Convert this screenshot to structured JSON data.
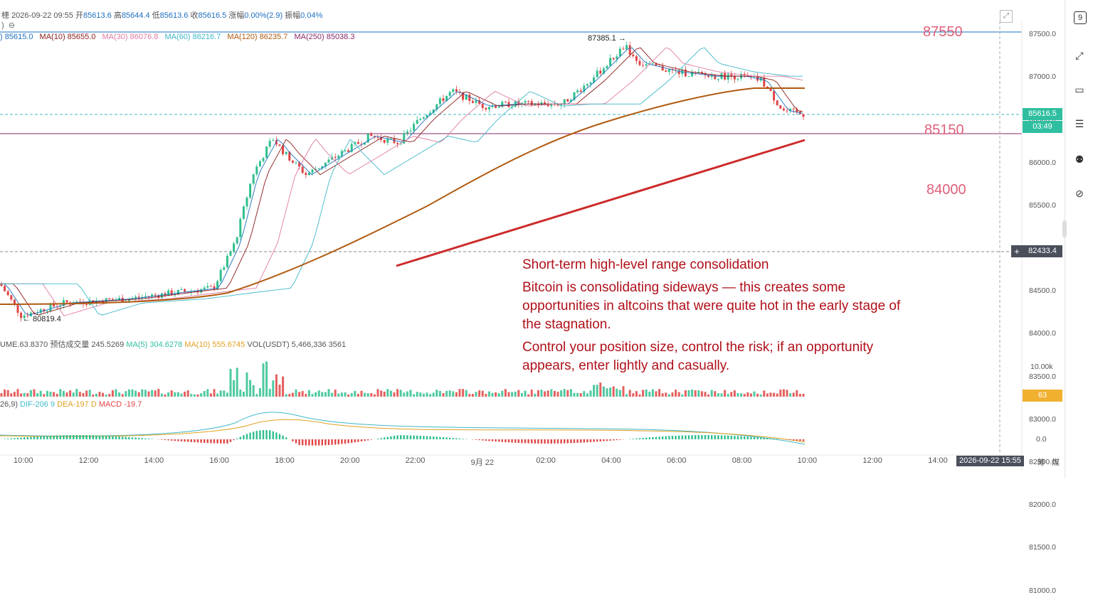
{
  "header": {
    "pair_prefix": "槵",
    "timestamp": "2026-09-22 09:55",
    "open_label": "开",
    "open": "85613.6",
    "high_label": "高",
    "high": "85644.4",
    "low_label": "低",
    "low": "85613.6",
    "close_label": "收",
    "close": "85616.5",
    "change_label": "涨幅",
    "change": "0.00%(2.9)",
    "amp_label": "振幅",
    "amp": "0.04%"
  },
  "ma_row": {
    "ma5": ") 85615.0",
    "ma10": "MA(10) 85655.0",
    "ma30": "MA(30) 86076.8",
    "ma60": "MA(60) 86216.7",
    "ma120": "MA(120) 86235.7",
    "ma250": "MA(250) 85038.3"
  },
  "colors": {
    "ma5": "#1e6fbf",
    "ma10": "#8b1a1a",
    "ma30": "#e07aa0",
    "ma60": "#3fb8c8",
    "ma120": "#b05a10",
    "ma250": "#8a2a6a",
    "up": "#2fbf8f",
    "down": "#e04444",
    "trendline": "#cc2b2b",
    "note": "#b0101a",
    "level": "#e0607a"
  },
  "annotations": {
    "high_marker": "87385.1 →",
    "low_marker": "← 80819.4"
  },
  "levels": {
    "l1": "87550",
    "l2": "85150",
    "l3": "84000"
  },
  "price_axis": [
    "87500.0",
    "87000.0",
    "86500.0",
    "86000.0",
    "85500.0",
    "85000.0",
    "84500.0",
    "84000.0",
    "83500.0",
    "83000.0",
    "82500.0",
    "82000.0",
    "81500.0",
    "81000.0"
  ],
  "price_tags": {
    "last": "85616.5",
    "countdown": "03:49",
    "cursor": "82433.4"
  },
  "volume": {
    "label_left": "UME.63.8370",
    "est_label": "预估成交量 245.5269",
    "ma5": "MA(5) 304.6278",
    "ma10": "MA(10) 555.6745",
    "vol_usdt": "VOL(USDT) 5,466,336 3561",
    "axis_10k": "10.00k",
    "tag": "63"
  },
  "macd": {
    "params": "26,9)",
    "dif": "DIF-206 9",
    "dea": "DEA-197 D",
    "macd": "MACD -19.7",
    "axis_zero": "0.0"
  },
  "time_axis": [
    "10:00",
    "12:00",
    "14:00",
    "16:00",
    "18:00",
    "20:00",
    "22:00",
    "9月 22",
    "02:00",
    "04:00",
    "06:00",
    "08:00",
    "10:00",
    "12:00",
    "14:00"
  ],
  "time_cursor": "2026-09-22 15:55",
  "right_labels": {
    "a": "筹",
    "b": "煤"
  },
  "notes": {
    "title": "Short-term high-level range consolidation",
    "p1": "Bitcoin is consolidating sideways — this creates some opportunities in altcoins that were quite hot in the early stage of the stagnation.",
    "p2": "Control your position size, control the risk; if an opportunity appears, enter lightly and casually."
  },
  "sidebar": [
    "calendar-9-icon",
    "expand-icon",
    "monitor-icon",
    "layers-icon",
    "robot-icon",
    "compare-icon"
  ]
}
